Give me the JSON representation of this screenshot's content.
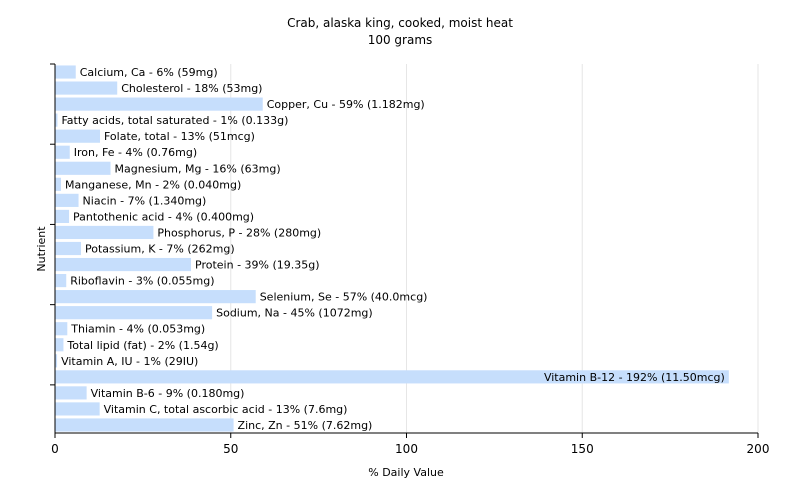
{
  "chart_data": {
    "type": "bar",
    "orientation": "horizontal",
    "title": "Crab, alaska king, cooked, moist heat",
    "subtitle": "100 grams",
    "xlabel": "% Daily Value",
    "ylabel": "Nutrient",
    "xlim": [
      0,
      200
    ],
    "xticks": [
      0,
      50,
      100,
      150,
      200
    ],
    "grid": true,
    "bar_color": "#c6defc",
    "grid_color": "#e6e6e6",
    "categories": [
      "Calcium, Ca - 6% (59mg)",
      "Cholesterol - 18% (53mg)",
      "Copper, Cu - 59% (1.182mg)",
      "Fatty acids, total saturated - 1% (0.133g)",
      "Folate, total - 13% (51mcg)",
      "Iron, Fe - 4% (0.76mg)",
      "Magnesium, Mg - 16% (63mg)",
      "Manganese, Mn - 2% (0.040mg)",
      "Niacin - 7% (1.340mg)",
      "Pantothenic acid - 4% (0.400mg)",
      "Phosphorus, P - 28% (280mg)",
      "Potassium, K - 7% (262mg)",
      "Protein - 39% (19.35g)",
      "Riboflavin - 3% (0.055mg)",
      "Selenium, Se - 57% (40.0mcg)",
      "Sodium, Na - 45% (1072mg)",
      "Thiamin - 4% (0.053mg)",
      "Total lipid (fat) - 2% (1.54g)",
      "Vitamin A, IU - 1% (29IU)",
      "Vitamin B-12 - 192% (11.50mcg)",
      "Vitamin B-6 - 9% (0.180mg)",
      "Vitamin C, total ascorbic acid - 13% (7.6mg)",
      "Zinc, Zn - 51% (7.62mg)"
    ],
    "values": [
      5.9,
      17.7,
      59.1,
      0.7,
      12.8,
      4.2,
      15.8,
      1.7,
      6.7,
      4.0,
      28.0,
      7.4,
      38.7,
      3.2,
      57.1,
      44.7,
      3.5,
      2.4,
      0.6,
      191.7,
      9.0,
      12.7,
      50.8
    ]
  }
}
